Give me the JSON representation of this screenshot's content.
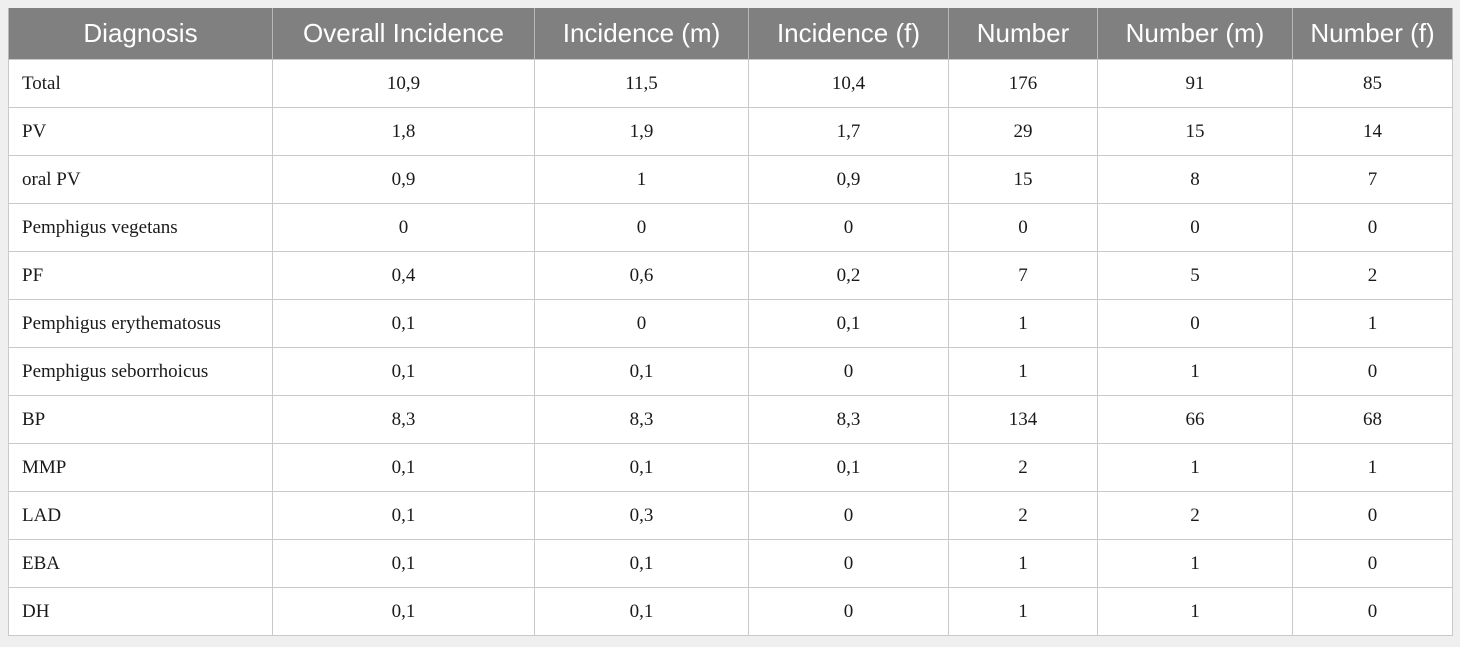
{
  "table": {
    "headers": [
      "Diagnosis",
      "Overall Incidence",
      "Incidence (m)",
      "Incidence (f)",
      "Number",
      "Number (m)",
      "Number (f)"
    ],
    "rows": [
      [
        "Total",
        "10,9",
        "11,5",
        "10,4",
        "176",
        "91",
        "85"
      ],
      [
        "PV",
        "1,8",
        "1,9",
        "1,7",
        "29",
        "15",
        "14"
      ],
      [
        "oral PV",
        "0,9",
        "1",
        "0,9",
        "15",
        "8",
        "7"
      ],
      [
        "Pemphigus vegetans",
        "0",
        "0",
        "0",
        "0",
        "0",
        "0"
      ],
      [
        "PF",
        "0,4",
        "0,6",
        "0,2",
        "7",
        "5",
        "2"
      ],
      [
        "Pemphigus erythematosus",
        "0,1",
        "0",
        "0,1",
        "1",
        "0",
        "1"
      ],
      [
        "Pemphigus seborrhoicus",
        "0,1",
        "0,1",
        "0",
        "1",
        "1",
        "0"
      ],
      [
        "BP",
        "8,3",
        "8,3",
        "8,3",
        "134",
        "66",
        "68"
      ],
      [
        "MMP",
        "0,1",
        "0,1",
        "0,1",
        "2",
        "1",
        "1"
      ],
      [
        "LAD",
        "0,1",
        "0,3",
        "0",
        "2",
        "2",
        "0"
      ],
      [
        "EBA",
        "0,1",
        "0,1",
        "0",
        "1",
        "1",
        "0"
      ],
      [
        "DH",
        "0,1",
        "0,1",
        "0",
        "1",
        "1",
        "0"
      ]
    ]
  },
  "colors": {
    "header_bg": "#808080",
    "header_text": "#ffffff",
    "body_bg": "#ffffff",
    "grid": "#c9c9c9",
    "frame_bg": "#efefef"
  }
}
